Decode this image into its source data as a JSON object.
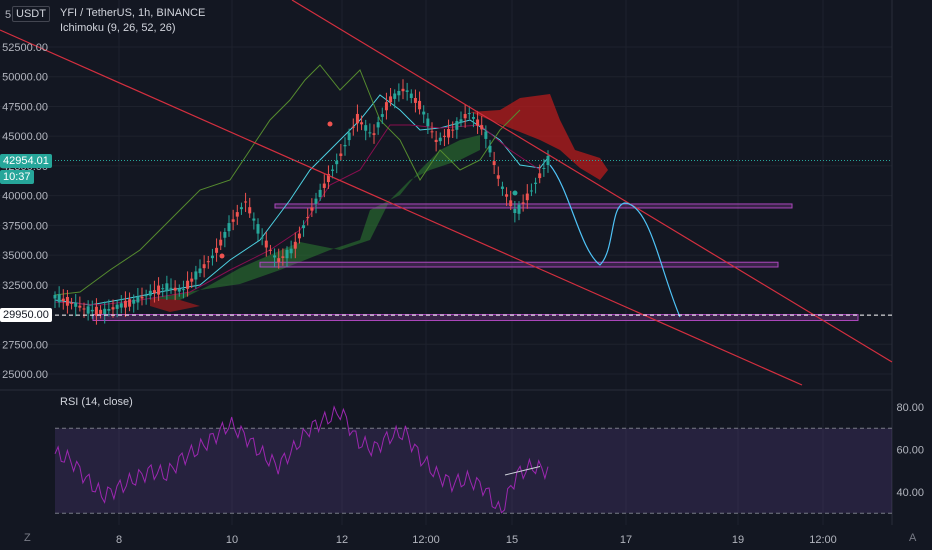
{
  "header": {
    "currency_button": "USDT",
    "currency_prefix": "5",
    "symbol_title": "YFI / TetherUS, 1h, BINANCE",
    "indicator_ichimoku": "Ichimoku (9, 26, 52, 26)",
    "indicator_rsi": "RSI (14, close)"
  },
  "price_badges": {
    "last_price": "42954.01",
    "countdown": "10:37",
    "marked_level": "29950.00"
  },
  "footer": {
    "left_icon_text": "Z",
    "right_icon_text": "A"
  },
  "colors": {
    "background": "#131722",
    "up_candle": "#26a69a",
    "down_candle": "#ef5350",
    "channel_line": "#d32f3f",
    "zone_border": "#ab47bc",
    "forecast_path": "#4fc3f7",
    "tenkan": "#4dd0e1",
    "kijun": "#880e4f",
    "chikou": "#558b2f",
    "cloud_bull": "#2e7d32",
    "cloud_bear": "#b71c1c",
    "rsi_line": "#9c27b0"
  },
  "chart_data": [
    {
      "type": "candlestick",
      "title": "YFI / TetherUS, 1h, BINANCE",
      "y_ticks": [
        "52500.00",
        "50000.00",
        "47500.00",
        "45000.00",
        "42500.00",
        "40000.00",
        "37500.00",
        "35000.00",
        "32500.00",
        "29950.00",
        "27500.00",
        "25000.00"
      ],
      "ylim": [
        24000,
        54000
      ],
      "x_ticks": [
        "8",
        "10",
        "12",
        "12:00",
        "15",
        "17",
        "19",
        "12:00"
      ],
      "close_series_approx": [
        31500,
        31000,
        30400,
        30200,
        30700,
        31100,
        31800,
        32300,
        32000,
        33500,
        35000,
        37500,
        39500,
        36500,
        34500,
        35500,
        38500,
        41000,
        43500,
        46500,
        45000,
        48000,
        49000,
        47500,
        44500,
        45500,
        47000,
        45500,
        41000,
        38500,
        40500,
        42954
      ],
      "last_price": 42954.01,
      "horizontal_zones": [
        {
          "low": 39000,
          "high": 39300
        },
        {
          "low": 34000,
          "high": 34400
        },
        {
          "low": 29500,
          "high": 30000
        }
      ],
      "marked_level": 29950.0,
      "annotations": [
        "descending channel",
        "projected path toward 29950"
      ]
    },
    {
      "type": "line",
      "title": "RSI (14, close)",
      "y_ticks": [
        "80.00",
        "60.00",
        "40.00"
      ],
      "ylim": [
        29,
        84
      ],
      "bands": [
        30,
        70
      ],
      "values_approx": [
        58,
        55,
        46,
        38,
        42,
        46,
        50,
        48,
        56,
        60,
        66,
        72,
        66,
        58,
        52,
        60,
        70,
        74,
        78,
        64,
        60,
        66,
        68,
        56,
        48,
        44,
        46,
        42,
        30,
        48,
        52,
        50
      ]
    }
  ]
}
